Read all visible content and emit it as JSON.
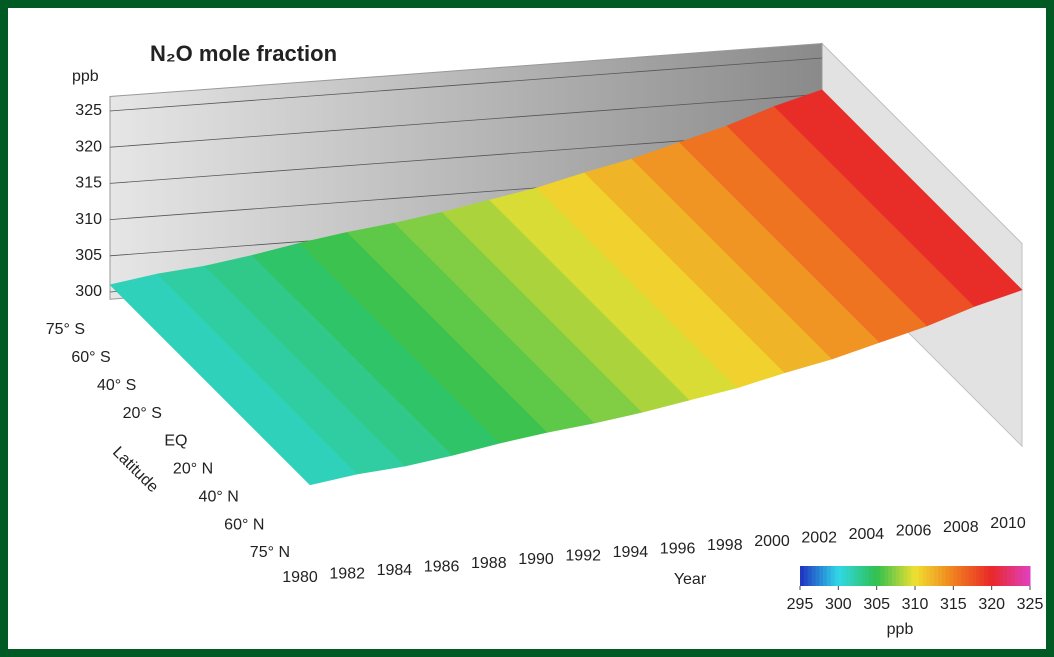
{
  "chart_data": {
    "type": "surface",
    "title": "N₂O mole fraction",
    "z_label": "ppb",
    "zlim": [
      300,
      327
    ],
    "zticks": [
      300,
      305,
      310,
      315,
      320,
      325
    ],
    "y_label": "Latitude",
    "latitudes": [
      "75° S",
      "60° S",
      "40° S",
      "20° S",
      "EQ",
      "20° N",
      "40° N",
      "60° N",
      "75° N"
    ],
    "x_label": "Year",
    "x": [
      1980,
      1982,
      1984,
      1986,
      1988,
      1990,
      1992,
      1994,
      1996,
      1998,
      2000,
      2002,
      2004,
      2006,
      2008,
      2010
    ],
    "xlim": [
      1980,
      2010
    ],
    "xticks": [
      1980,
      1982,
      1984,
      1986,
      1988,
      1990,
      1992,
      1994,
      1996,
      1998,
      2000,
      2002,
      2004,
      2006,
      2008,
      2010
    ],
    "values": [
      301.0,
      302.0,
      302.6,
      303.6,
      304.8,
      305.8,
      306.6,
      307.6,
      308.8,
      310.0,
      311.6,
      313.0,
      314.8,
      316.6,
      318.8,
      320.6
    ],
    "colorbar_label": "ppb",
    "colorbar_lim": [
      295,
      325
    ],
    "colorbar_ticks": [
      295,
      300,
      305,
      310,
      315,
      320,
      325
    ],
    "colorscale": [
      "#2030c0",
      "#30d8e8",
      "#30c050",
      "#f0e030",
      "#f08020",
      "#e82828",
      "#e040c0"
    ]
  }
}
